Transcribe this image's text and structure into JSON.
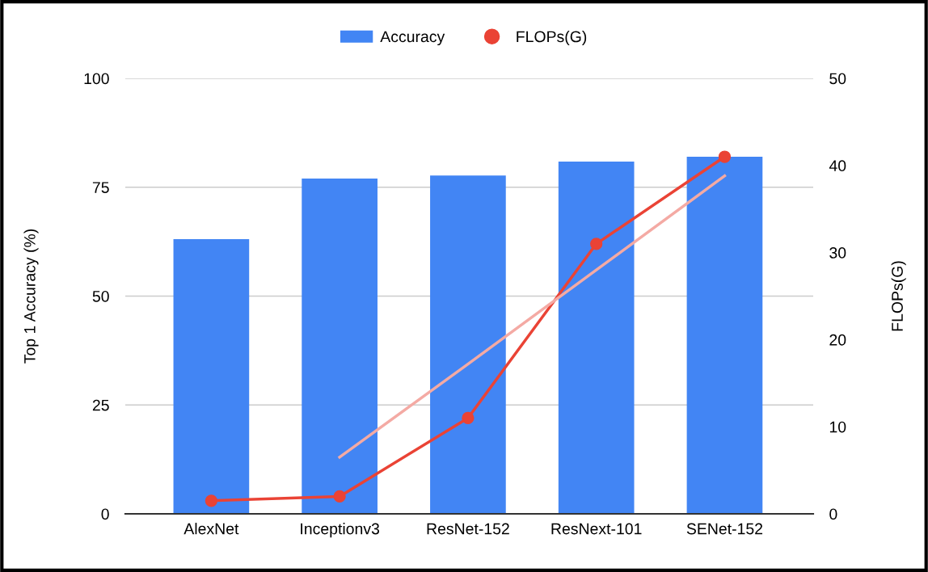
{
  "chart_data": {
    "type": "bar",
    "categories": [
      "AlexNet",
      "Inceptionv3",
      "ResNet-152",
      "ResNext-101",
      "SENet-152"
    ],
    "series": [
      {
        "name": "Accuracy",
        "color": "#4285f4",
        "values": [
          63.1,
          77.0,
          77.7,
          80.9,
          82.0
        ]
      },
      {
        "name": "FLOPs(G)",
        "type": "line",
        "axis": "y2",
        "color": "#ea4335",
        "marker": "circle",
        "values": [
          1.5,
          2.0,
          11.0,
          31.0,
          41.0
        ]
      },
      {
        "type": "line",
        "axis": "y2",
        "color": "#f4aaa4",
        "values": [
          null,
          6.5,
          17.2,
          28.0,
          38.8
        ]
      }
    ],
    "ylabel": "Top 1 Accuracy (%)",
    "y2label": "FLOPs(G)",
    "ylim": [
      0,
      100
    ],
    "yticks": [
      0,
      25,
      50,
      75,
      100
    ],
    "y2lim": [
      0,
      50
    ],
    "y2ticks": [
      0,
      10,
      20,
      30,
      40,
      50
    ],
    "grid": "y",
    "legend": "top"
  }
}
